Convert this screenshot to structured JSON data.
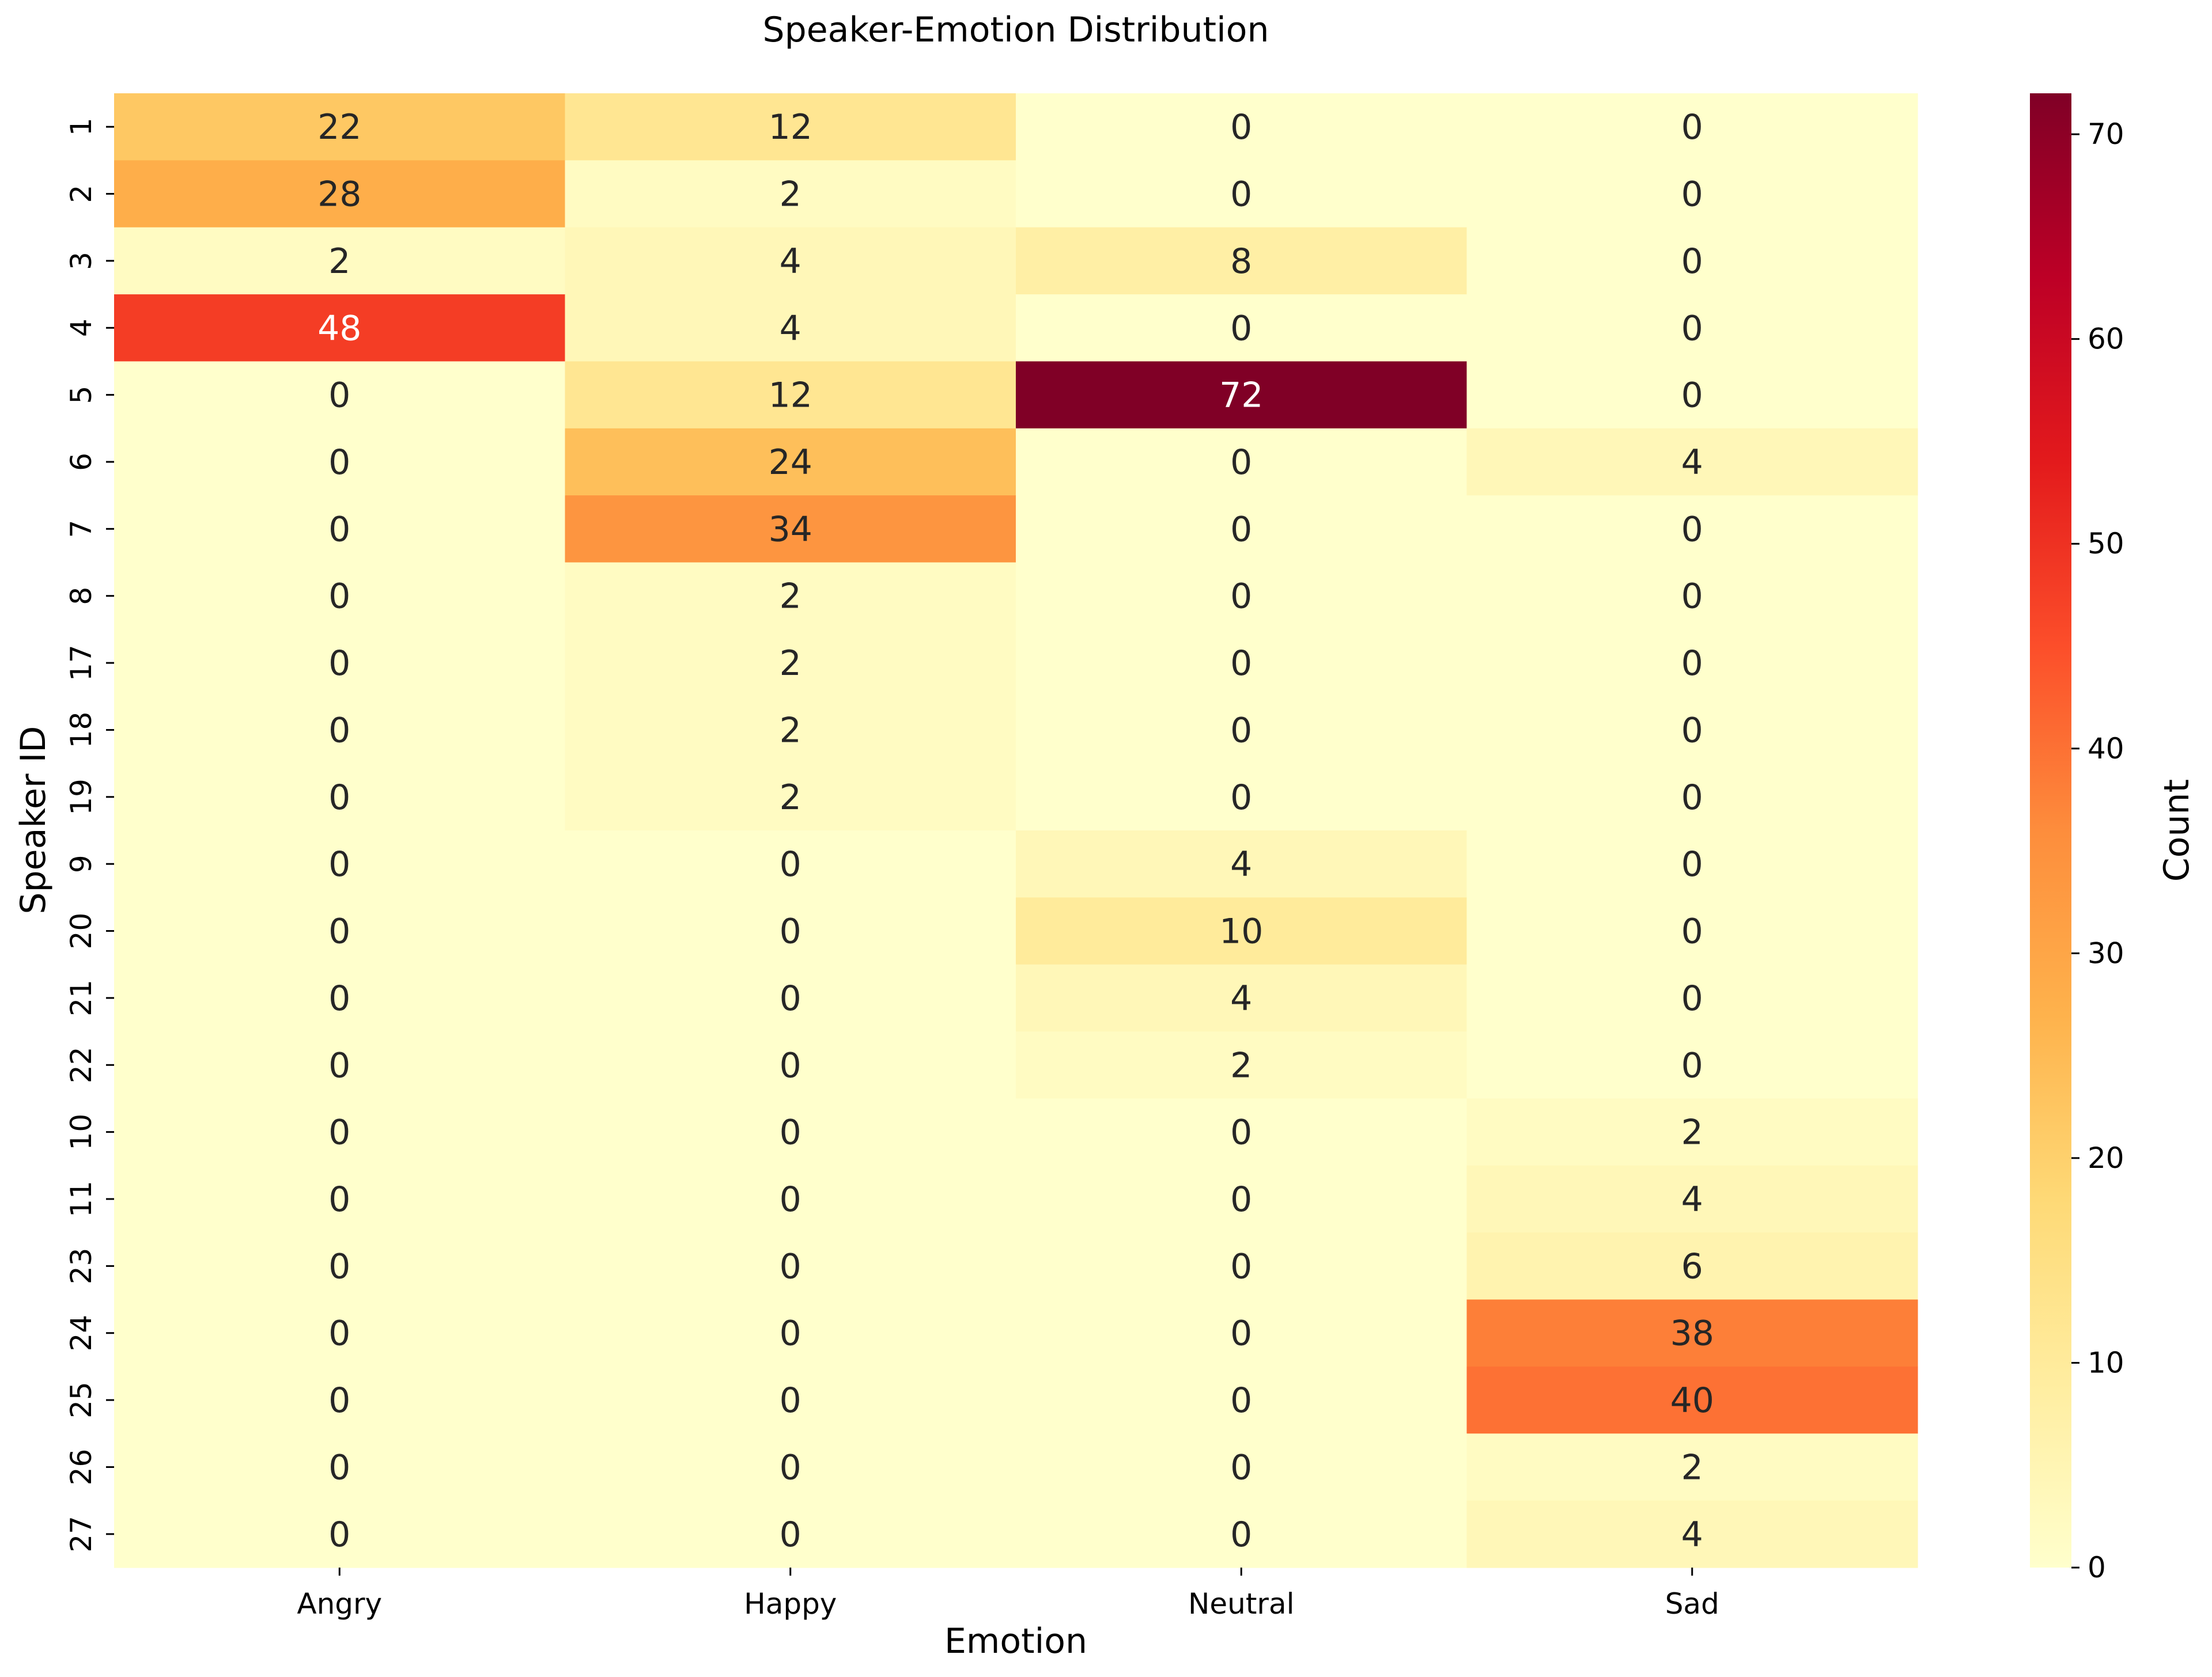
{
  "chart_data": {
    "type": "heatmap",
    "title": "Speaker-Emotion Distribution",
    "xlabel": "Emotion",
    "ylabel": "Speaker ID",
    "colorbar_label": "Count",
    "colormap": "YlOrRd",
    "value_range": [
      0,
      72
    ],
    "colorbar_ticks": [
      0,
      10,
      20,
      30,
      40,
      50,
      60,
      70
    ],
    "columns": [
      "Angry",
      "Happy",
      "Neutral",
      "Sad"
    ],
    "rows": [
      "1",
      "2",
      "3",
      "4",
      "5",
      "6",
      "7",
      "8",
      "17",
      "18",
      "19",
      "9",
      "20",
      "21",
      "22",
      "10",
      "11",
      "23",
      "24",
      "25",
      "26",
      "27"
    ],
    "values": [
      [
        22,
        12,
        0,
        0
      ],
      [
        28,
        2,
        0,
        0
      ],
      [
        2,
        4,
        8,
        0
      ],
      [
        48,
        4,
        0,
        0
      ],
      [
        0,
        12,
        72,
        0
      ],
      [
        0,
        24,
        0,
        4
      ],
      [
        0,
        34,
        0,
        0
      ],
      [
        0,
        2,
        0,
        0
      ],
      [
        0,
        2,
        0,
        0
      ],
      [
        0,
        2,
        0,
        0
      ],
      [
        0,
        2,
        0,
        0
      ],
      [
        0,
        0,
        4,
        0
      ],
      [
        0,
        0,
        10,
        0
      ],
      [
        0,
        0,
        4,
        0
      ],
      [
        0,
        0,
        2,
        0
      ],
      [
        0,
        0,
        0,
        2
      ],
      [
        0,
        0,
        0,
        4
      ],
      [
        0,
        0,
        0,
        6
      ],
      [
        0,
        0,
        0,
        38
      ],
      [
        0,
        0,
        0,
        40
      ],
      [
        0,
        0,
        0,
        2
      ],
      [
        0,
        0,
        0,
        4
      ]
    ],
    "annotations": true,
    "grid": false,
    "legend": "colorbar-right"
  }
}
